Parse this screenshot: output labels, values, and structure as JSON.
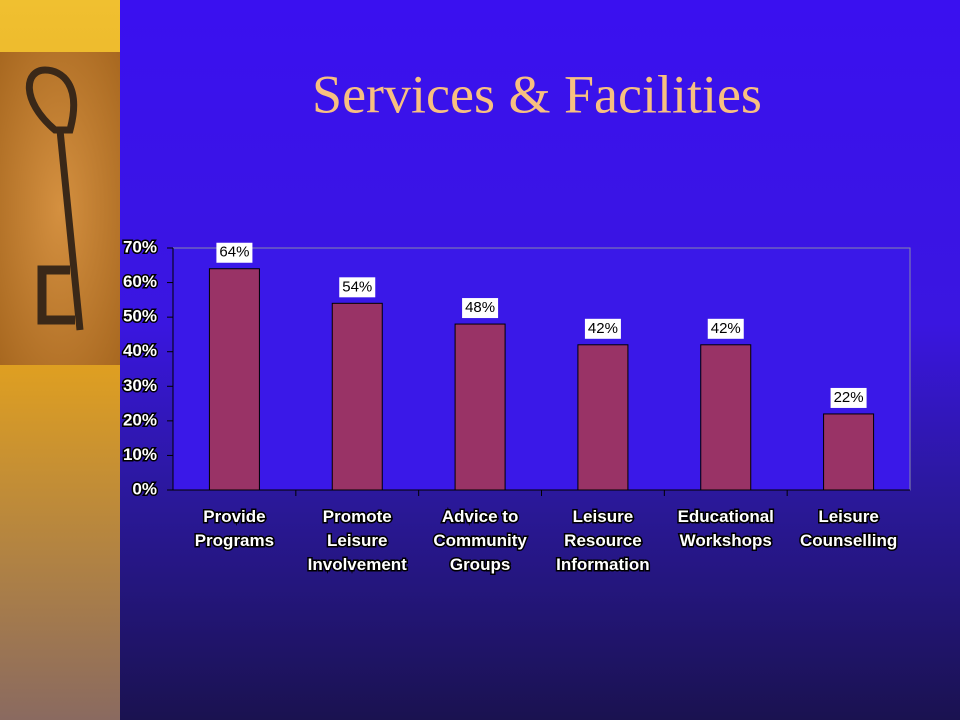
{
  "chart_data": {
    "type": "bar",
    "title": "Services & Facilities",
    "categories": [
      "Provide\nPrograms",
      "Promote\nLeisure\nInvolvement",
      "Advice to\nCommunity\nGroups",
      "Leisure\nResource\nInformation",
      "Educational\nWorkshops",
      "Leisure\nCounselling"
    ],
    "values": [
      64,
      54,
      48,
      42,
      42,
      22
    ],
    "value_labels": [
      "64%",
      "54%",
      "48%",
      "42%",
      "42%",
      "22%"
    ],
    "color": "#993366",
    "ylim": [
      0,
      70
    ],
    "yticks": [
      {
        "value": 0,
        "label": "0%"
      },
      {
        "value": 10,
        "label": "10%"
      },
      {
        "value": 20,
        "label": "20%"
      },
      {
        "value": 30,
        "label": "30%"
      },
      {
        "value": 40,
        "label": "40%"
      },
      {
        "value": 50,
        "label": "50%"
      },
      {
        "value": 60,
        "label": "60%"
      },
      {
        "value": 70,
        "label": "70%"
      }
    ],
    "grid": false
  }
}
